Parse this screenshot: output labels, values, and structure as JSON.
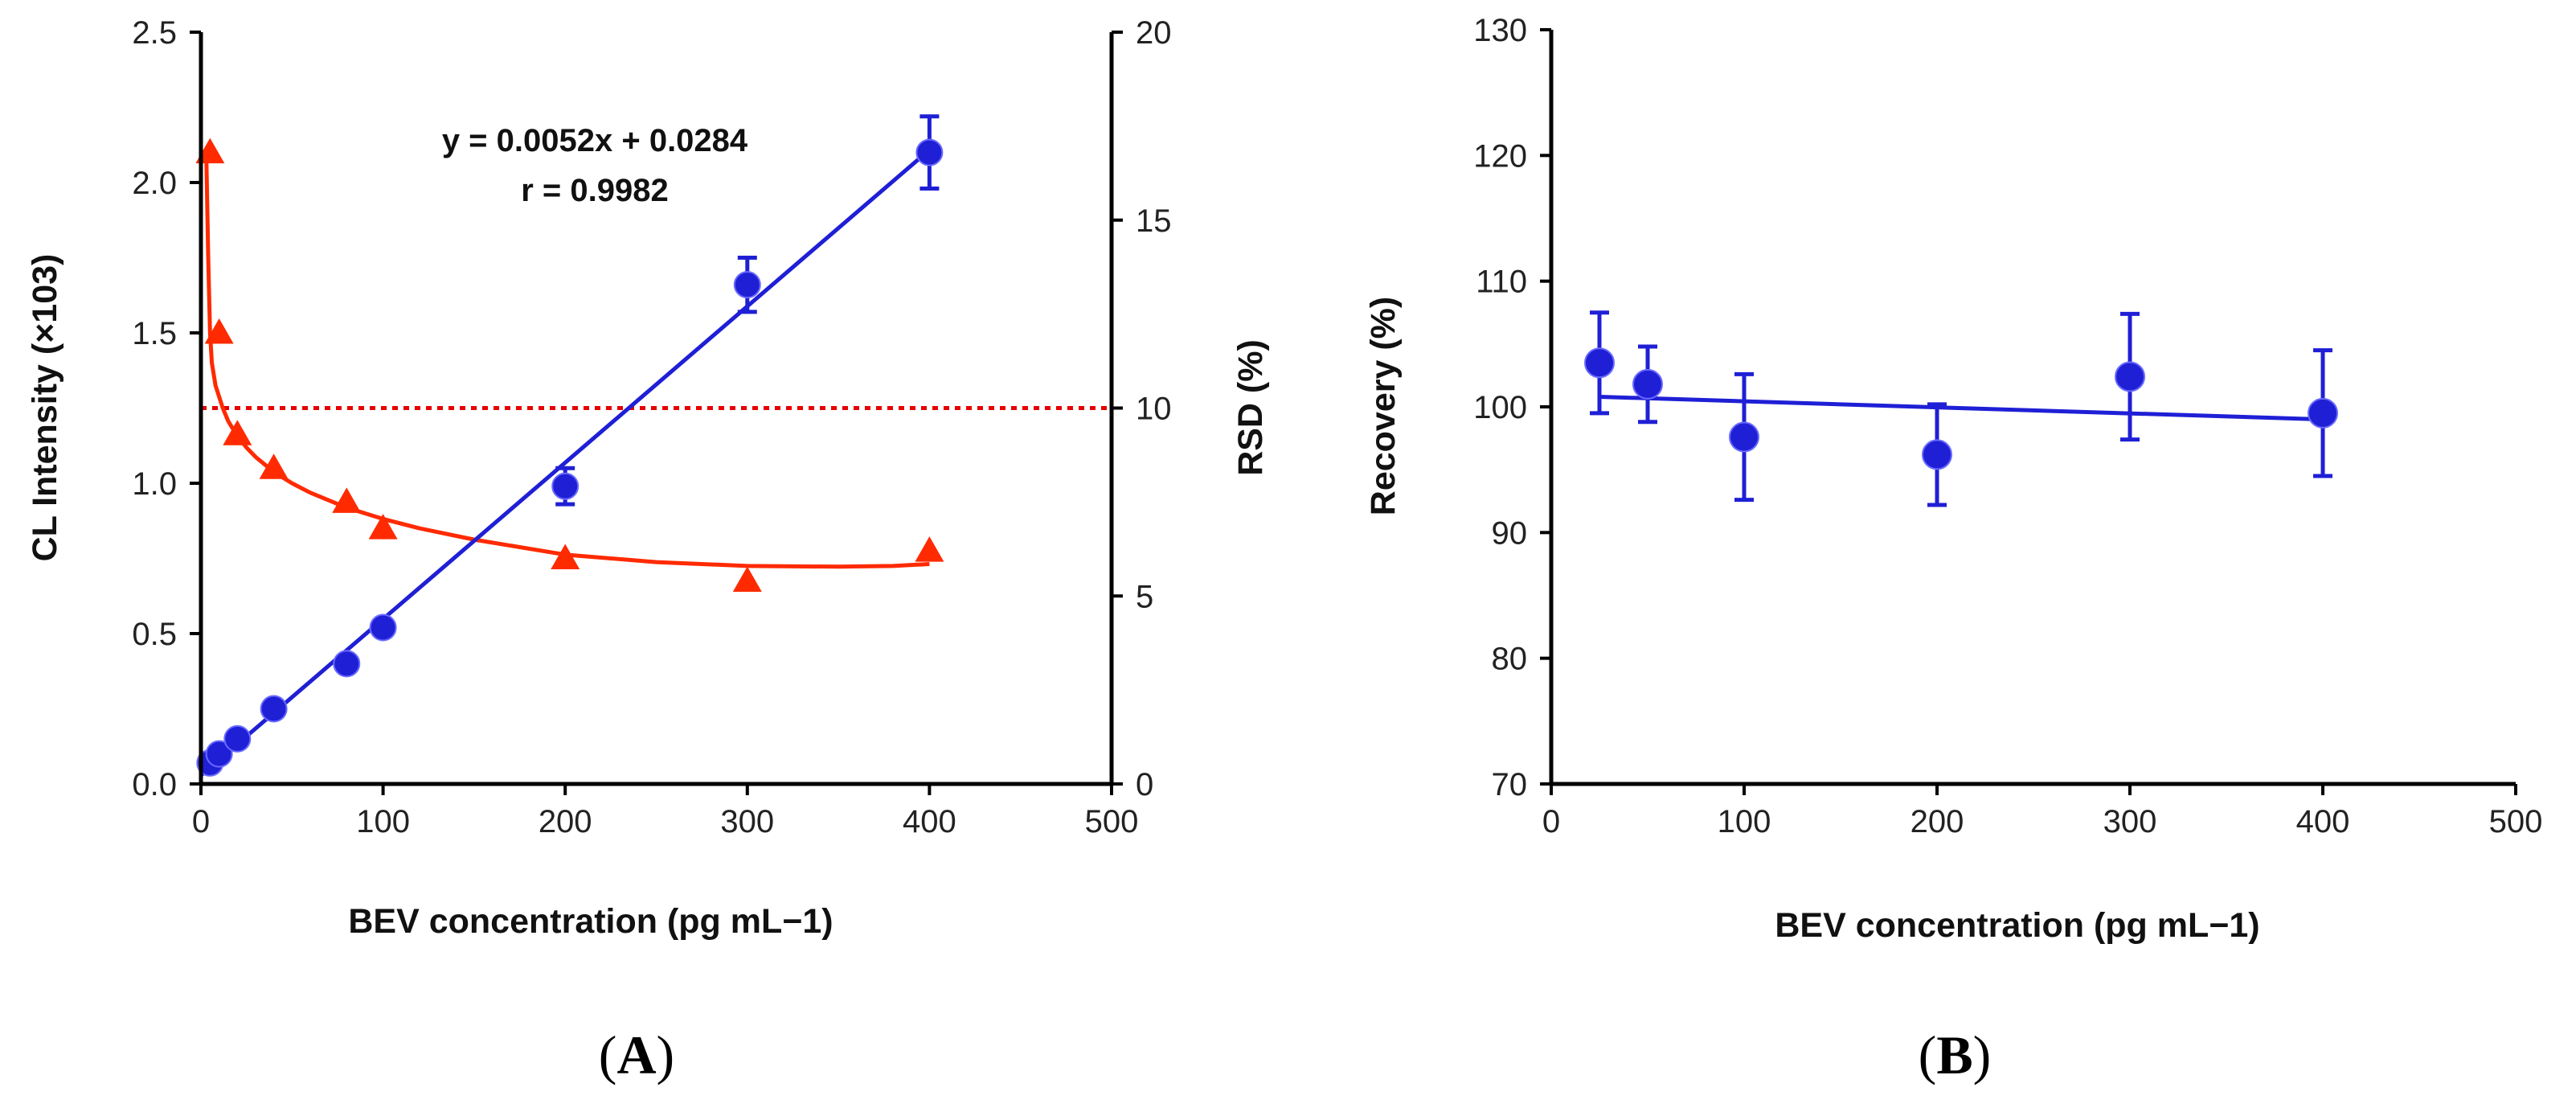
{
  "chart_data": [
    {
      "panel": "A",
      "panel_label": "A",
      "type": "scatter",
      "xlabel": "BEV concentration (pg mL−1)",
      "ylabel": "CL Intensity (×103)",
      "y2label": "RSD (%)",
      "xlim": [
        0,
        500
      ],
      "ylim": [
        0,
        2.5
      ],
      "y2lim": [
        0,
        20
      ],
      "xticks": [
        "0",
        "100",
        "200",
        "300",
        "400",
        "500"
      ],
      "yticks": [
        "0.0",
        "0.5",
        "1.0",
        "1.5",
        "2.0",
        "2.5"
      ],
      "y2ticks": [
        "0",
        "5",
        "10",
        "15",
        "20"
      ],
      "annotations": [
        "y = 0.0052x + 0.0284",
        "r = 0.9982"
      ],
      "series": [
        {
          "name": "CL intensity",
          "axis": "left",
          "marker": "circle",
          "color": "#1f1fd6",
          "x": [
            5,
            10,
            20,
            40,
            80,
            100,
            200,
            300,
            400
          ],
          "values": [
            0.07,
            0.1,
            0.15,
            0.25,
            0.4,
            0.52,
            0.99,
            1.66,
            2.1
          ],
          "errors": [
            0,
            0,
            0,
            0,
            0,
            0,
            0.06,
            0.09,
            0.12
          ]
        },
        {
          "name": "RSD",
          "axis": "right",
          "marker": "triangle",
          "color": "#ff2a00",
          "x": [
            5,
            10,
            20,
            40,
            80,
            100,
            200,
            300,
            400
          ],
          "values": [
            16.8,
            12.0,
            9.3,
            8.4,
            7.5,
            6.8,
            6.0,
            5.4,
            6.2
          ]
        }
      ],
      "fit_line": {
        "slope": 0.0052,
        "intercept": 0.0284,
        "x_range": [
          0,
          400
        ],
        "color": "#1f1fd6"
      },
      "rsd_curve": {
        "color": "#ff2a00",
        "x": [
          3,
          4,
          5,
          6,
          8,
          10,
          12,
          15,
          20,
          25,
          30,
          40,
          50,
          60,
          80,
          100,
          120,
          150,
          200,
          250,
          300,
          350,
          380,
          400
        ],
        "values": [
          16.6,
          14.0,
          12.0,
          11.2,
          10.6,
          10.3,
          10.0,
          9.65,
          9.25,
          8.95,
          8.7,
          8.3,
          8.0,
          7.75,
          7.35,
          7.05,
          6.8,
          6.5,
          6.1,
          5.9,
          5.8,
          5.78,
          5.8,
          5.85
        ]
      },
      "threshold": {
        "axis": "right",
        "value": 10,
        "color": "#e60000",
        "style": "dotted"
      }
    },
    {
      "panel": "B",
      "panel_label": "B",
      "type": "scatter",
      "xlabel": "BEV concentration (pg mL−1)",
      "ylabel": "Recovery (%)",
      "xlim": [
        0,
        500
      ],
      "ylim": [
        70,
        130
      ],
      "xticks": [
        "0",
        "100",
        "200",
        "300",
        "400",
        "500"
      ],
      "yticks": [
        "70",
        "80",
        "90",
        "100",
        "110",
        "120",
        "130"
      ],
      "series": [
        {
          "name": "Recovery",
          "marker": "circle",
          "color": "#1f1fd6",
          "x": [
            25,
            50,
            100,
            200,
            300,
            400
          ],
          "values": [
            103.5,
            101.8,
            97.6,
            96.2,
            102.4,
            99.5
          ],
          "errors": [
            4.0,
            3.0,
            5.0,
            4.0,
            5.0,
            5.0
          ]
        }
      ],
      "fit_line": {
        "x_range": [
          25,
          400
        ],
        "values": [
          100.8,
          99.0
        ],
        "color": "#1f1fd6"
      }
    }
  ]
}
